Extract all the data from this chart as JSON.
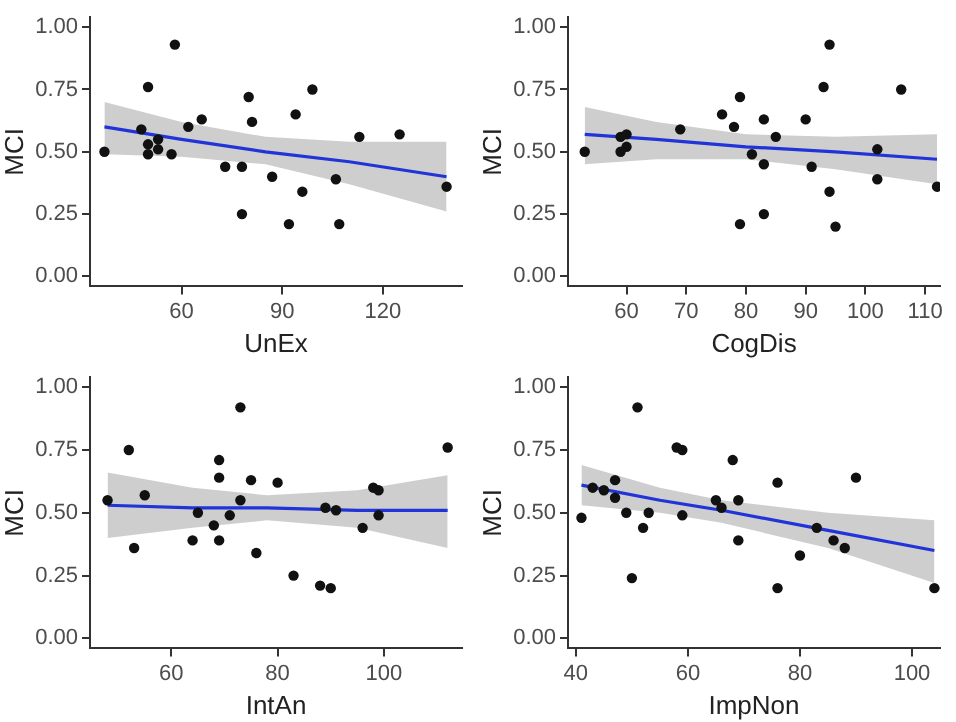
{
  "chart_data": [
    {
      "type": "scatter",
      "xlabel": "UnEx",
      "ylabel": "MCI",
      "xlim": [
        32.7,
        143.6
      ],
      "xticks": [
        60,
        90,
        120
      ],
      "ylim": [
        -0.04,
        1.04
      ],
      "yticks": [
        {
          "value": 0,
          "label": "0.00"
        },
        {
          "value": 0.25,
          "label": "0.25"
        },
        {
          "value": 0.5,
          "label": "0.50"
        },
        {
          "value": 0.75,
          "label": "0.75"
        },
        {
          "value": 1,
          "label": "1.00"
        }
      ],
      "grid": false,
      "legend": false,
      "series": [
        {
          "type": "scatter",
          "marker": "circle",
          "color": "#111111",
          "x": [
            37,
            48,
            50,
            50,
            50,
            53,
            53,
            57,
            58,
            62,
            66,
            73,
            78,
            78,
            80,
            81,
            87,
            92,
            94,
            96,
            99,
            106,
            107,
            113,
            125,
            139
          ],
          "values": [
            0.5,
            0.59,
            0.76,
            0.53,
            0.49,
            0.55,
            0.51,
            0.49,
            0.93,
            0.6,
            0.63,
            0.44,
            0.44,
            0.25,
            0.72,
            0.62,
            0.4,
            0.21,
            0.65,
            0.34,
            0.75,
            0.39,
            0.21,
            0.56,
            0.57,
            0.36
          ]
        },
        {
          "type": "line",
          "color": "#2134d8",
          "x": [
            37,
            60,
            85,
            110,
            139
          ],
          "values": [
            0.6,
            0.55,
            0.5,
            0.46,
            0.4
          ],
          "lower": [
            0.49,
            0.48,
            0.45,
            0.37,
            0.26
          ],
          "upper": [
            0.7,
            0.62,
            0.56,
            0.54,
            0.54
          ]
        }
      ]
    },
    {
      "type": "scatter",
      "xlabel": "CogDis",
      "ylabel": "MCI",
      "xlim": [
        50.2,
        112.5
      ],
      "xticks": [
        60,
        70,
        80,
        90,
        100,
        110
      ],
      "ylim": [
        -0.04,
        1.04
      ],
      "yticks": [
        {
          "value": 0,
          "label": "0.00"
        },
        {
          "value": 0.25,
          "label": "0.25"
        },
        {
          "value": 0.5,
          "label": "0.50"
        },
        {
          "value": 0.75,
          "label": "0.75"
        },
        {
          "value": 1,
          "label": "1.00"
        }
      ],
      "grid": false,
      "legend": false,
      "series": [
        {
          "type": "scatter",
          "marker": "circle",
          "color": "#111111",
          "x": [
            53,
            59,
            59,
            60,
            60,
            69,
            76,
            78,
            79,
            79,
            81,
            83,
            83,
            83,
            85,
            90,
            91,
            93,
            94,
            94,
            95,
            102,
            102,
            106,
            112
          ],
          "values": [
            0.5,
            0.5,
            0.56,
            0.52,
            0.57,
            0.59,
            0.65,
            0.6,
            0.72,
            0.21,
            0.49,
            0.63,
            0.45,
            0.25,
            0.56,
            0.63,
            0.44,
            0.76,
            0.93,
            0.34,
            0.2,
            0.51,
            0.39,
            0.75,
            0.36
          ]
        },
        {
          "type": "line",
          "color": "#2134d8",
          "x": [
            53,
            65,
            80,
            95,
            112
          ],
          "values": [
            0.57,
            0.55,
            0.52,
            0.5,
            0.47
          ],
          "lower": [
            0.45,
            0.47,
            0.47,
            0.43,
            0.37
          ],
          "upper": [
            0.68,
            0.62,
            0.57,
            0.56,
            0.57
          ]
        }
      ]
    },
    {
      "type": "scatter",
      "xlabel": "IntAn",
      "ylabel": "MCI",
      "xlim": [
        44.7,
        114.7
      ],
      "xticks": [
        60,
        80,
        100
      ],
      "ylim": [
        -0.04,
        1.04
      ],
      "yticks": [
        {
          "value": 0,
          "label": "0.00"
        },
        {
          "value": 0.25,
          "label": "0.25"
        },
        {
          "value": 0.5,
          "label": "0.50"
        },
        {
          "value": 0.75,
          "label": "0.75"
        },
        {
          "value": 1,
          "label": "1.00"
        }
      ],
      "grid": false,
      "legend": false,
      "series": [
        {
          "type": "scatter",
          "marker": "circle",
          "color": "#111111",
          "x": [
            48,
            52,
            53,
            55,
            64,
            65,
            68,
            69,
            69,
            69,
            71,
            73,
            73,
            75,
            76,
            80,
            83,
            88,
            90,
            89,
            91,
            96,
            98,
            99,
            99,
            112
          ],
          "values": [
            0.55,
            0.75,
            0.36,
            0.57,
            0.39,
            0.5,
            0.45,
            0.71,
            0.64,
            0.39,
            0.49,
            0.92,
            0.55,
            0.63,
            0.34,
            0.62,
            0.25,
            0.21,
            0.2,
            0.52,
            0.51,
            0.44,
            0.6,
            0.59,
            0.49,
            0.76
          ]
        },
        {
          "type": "line",
          "color": "#2134d8",
          "x": [
            48,
            64,
            78,
            95,
            112
          ],
          "values": [
            0.53,
            0.52,
            0.52,
            0.51,
            0.51
          ],
          "lower": [
            0.4,
            0.44,
            0.47,
            0.44,
            0.36
          ],
          "upper": [
            0.66,
            0.6,
            0.57,
            0.59,
            0.65
          ]
        }
      ]
    },
    {
      "type": "scatter",
      "xlabel": "ImpNon",
      "ylabel": "MCI",
      "xlim": [
        38.6,
        105
      ],
      "xticks": [
        40,
        60,
        80,
        100
      ],
      "ylim": [
        -0.04,
        1.04
      ],
      "yticks": [
        {
          "value": 0,
          "label": "0.00"
        },
        {
          "value": 0.25,
          "label": "0.25"
        },
        {
          "value": 0.5,
          "label": "0.50"
        },
        {
          "value": 0.75,
          "label": "0.75"
        },
        {
          "value": 1,
          "label": "1.00"
        }
      ],
      "grid": false,
      "legend": false,
      "series": [
        {
          "type": "scatter",
          "marker": "circle",
          "color": "#111111",
          "x": [
            41,
            43,
            45,
            47,
            47,
            49,
            50,
            51,
            52,
            53,
            58,
            59,
            59,
            65,
            66,
            68,
            69,
            69,
            76,
            76,
            80,
            83,
            86,
            88,
            90,
            104
          ],
          "values": [
            0.48,
            0.6,
            0.59,
            0.63,
            0.56,
            0.5,
            0.24,
            0.92,
            0.44,
            0.5,
            0.76,
            0.75,
            0.49,
            0.55,
            0.52,
            0.71,
            0.55,
            0.39,
            0.62,
            0.2,
            0.33,
            0.44,
            0.39,
            0.36,
            0.64,
            0.2
          ]
        },
        {
          "type": "line",
          "color": "#2134d8",
          "x": [
            41,
            55,
            66,
            85,
            104
          ],
          "values": [
            0.61,
            0.55,
            0.51,
            0.43,
            0.35
          ],
          "lower": [
            0.53,
            0.5,
            0.46,
            0.36,
            0.22
          ],
          "upper": [
            0.69,
            0.6,
            0.55,
            0.5,
            0.47
          ]
        }
      ]
    }
  ]
}
